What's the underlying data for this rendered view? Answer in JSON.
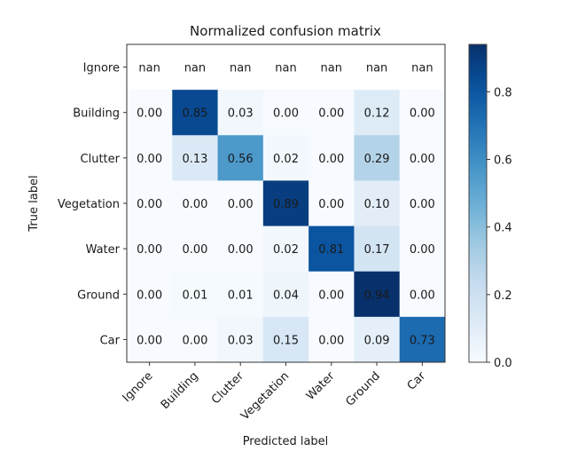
{
  "chart_data": {
    "type": "heatmap",
    "title": "Normalized confusion matrix",
    "xlabel": "Predicted label",
    "ylabel": "True label",
    "x_categories": [
      "Ignore",
      "Building",
      "Clutter",
      "Vegetation",
      "Water",
      "Ground",
      "Car"
    ],
    "y_categories": [
      "Ignore",
      "Building",
      "Clutter",
      "Vegetation",
      "Water",
      "Ground",
      "Car"
    ],
    "values": [
      [
        null,
        null,
        null,
        null,
        null,
        null,
        null
      ],
      [
        0.0,
        0.85,
        0.03,
        0.0,
        0.0,
        0.12,
        0.0
      ],
      [
        0.0,
        0.13,
        0.56,
        0.02,
        0.0,
        0.29,
        0.0
      ],
      [
        0.0,
        0.0,
        0.0,
        0.89,
        0.0,
        0.1,
        0.0
      ],
      [
        0.0,
        0.0,
        0.0,
        0.02,
        0.81,
        0.17,
        0.0
      ],
      [
        0.0,
        0.01,
        0.01,
        0.04,
        0.0,
        0.94,
        0.0
      ],
      [
        0.0,
        0.0,
        0.03,
        0.15,
        0.0,
        0.09,
        0.73
      ]
    ],
    "nan_label": "nan",
    "colormap": "Blues",
    "color_range": [
      0.0,
      0.94
    ],
    "colorbar_ticks": [
      "0.0",
      "0.2",
      "0.4",
      "0.6",
      "0.8"
    ],
    "grid": false,
    "colorbar_placement": "right"
  }
}
